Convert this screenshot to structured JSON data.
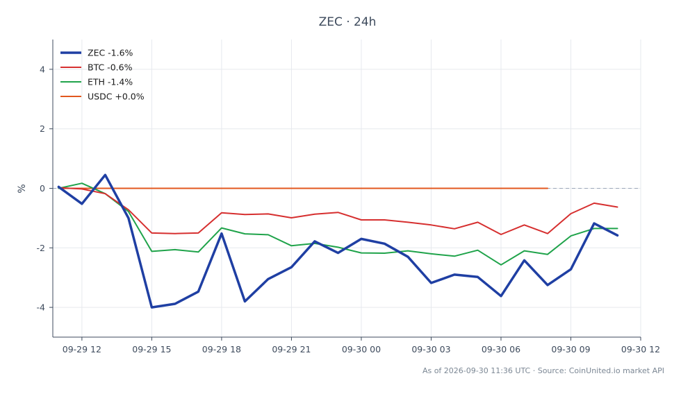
{
  "chart_data": {
    "type": "line",
    "title": "ZEC · 24h",
    "xlabel": "",
    "ylabel": "%",
    "xlim": [
      "2026-09-29 10:45",
      "2026-09-30 12:00"
    ],
    "ylim": [
      -5,
      5
    ],
    "x_ticks": [
      "09-29 12",
      "09-29 15",
      "09-29 18",
      "09-29 21",
      "09-30 00",
      "09-30 03",
      "09-30 06",
      "09-30 09",
      "09-30 12"
    ],
    "y_ticks": [
      4,
      2,
      0,
      -2,
      -4
    ],
    "grid": true,
    "legend_position": "top-left",
    "reference_line": {
      "y": 0,
      "style": "dashed"
    },
    "series": [
      {
        "name": "ZEC -1.6%",
        "color": "#1f3fa3",
        "values": [
          [
            "2026-09-29 11:00",
            0.05
          ],
          [
            "2026-09-29 12:00",
            -0.52
          ],
          [
            "2026-09-29 13:00",
            0.45
          ],
          [
            "2026-09-29 14:00",
            -1.0
          ],
          [
            "2026-09-29 15:00",
            -4.0
          ],
          [
            "2026-09-29 16:00",
            -3.88
          ],
          [
            "2026-09-29 17:00",
            -3.47
          ],
          [
            "2026-09-29 18:00",
            -1.52
          ],
          [
            "2026-09-29 19:00",
            -3.8
          ],
          [
            "2026-09-29 20:00",
            -3.05
          ],
          [
            "2026-09-29 21:00",
            -2.65
          ],
          [
            "2026-09-29 22:00",
            -1.78
          ],
          [
            "2026-09-29 23:00",
            -2.17
          ],
          [
            "2026-09-30 00:00",
            -1.7
          ],
          [
            "2026-09-30 01:00",
            -1.86
          ],
          [
            "2026-09-30 02:00",
            -2.3
          ],
          [
            "2026-09-30 03:00",
            -3.18
          ],
          [
            "2026-09-30 04:00",
            -2.9
          ],
          [
            "2026-09-30 05:00",
            -2.98
          ],
          [
            "2026-09-30 06:00",
            -3.62
          ],
          [
            "2026-09-30 07:00",
            -2.42
          ],
          [
            "2026-09-30 08:00",
            -3.25
          ],
          [
            "2026-09-30 09:00",
            -2.72
          ],
          [
            "2026-09-30 10:00",
            -1.18
          ],
          [
            "2026-09-30 11:00",
            -1.58
          ]
        ]
      },
      {
        "name": "BTC -0.6%",
        "color": "#d62f2f",
        "values": [
          [
            "2026-09-29 11:00",
            0.02
          ],
          [
            "2026-09-29 12:00",
            -0.02
          ],
          [
            "2026-09-29 13:00",
            -0.18
          ],
          [
            "2026-09-29 14:00",
            -0.72
          ],
          [
            "2026-09-29 15:00",
            -1.5
          ],
          [
            "2026-09-29 16:00",
            -1.52
          ],
          [
            "2026-09-29 17:00",
            -1.5
          ],
          [
            "2026-09-29 18:00",
            -0.82
          ],
          [
            "2026-09-29 19:00",
            -0.88
          ],
          [
            "2026-09-29 20:00",
            -0.86
          ],
          [
            "2026-09-29 21:00",
            -0.99
          ],
          [
            "2026-09-29 22:00",
            -0.87
          ],
          [
            "2026-09-29 23:00",
            -0.81
          ],
          [
            "2026-09-30 00:00",
            -1.06
          ],
          [
            "2026-09-30 01:00",
            -1.06
          ],
          [
            "2026-09-30 02:00",
            -1.14
          ],
          [
            "2026-09-30 03:00",
            -1.23
          ],
          [
            "2026-09-30 04:00",
            -1.36
          ],
          [
            "2026-09-30 05:00",
            -1.14
          ],
          [
            "2026-09-30 06:00",
            -1.55
          ],
          [
            "2026-09-30 07:00",
            -1.23
          ],
          [
            "2026-09-30 08:00",
            -1.52
          ],
          [
            "2026-09-30 09:00",
            -0.85
          ],
          [
            "2026-09-30 10:00",
            -0.5
          ],
          [
            "2026-09-30 11:00",
            -0.63
          ]
        ]
      },
      {
        "name": "ETH -1.4%",
        "color": "#1fa34a",
        "values": [
          [
            "2026-09-29 11:00",
            0.0
          ],
          [
            "2026-09-29 12:00",
            0.17
          ],
          [
            "2026-09-29 13:00",
            -0.18
          ],
          [
            "2026-09-29 14:00",
            -0.78
          ],
          [
            "2026-09-29 15:00",
            -2.12
          ],
          [
            "2026-09-29 16:00",
            -2.06
          ],
          [
            "2026-09-29 17:00",
            -2.14
          ],
          [
            "2026-09-29 18:00",
            -1.33
          ],
          [
            "2026-09-29 19:00",
            -1.53
          ],
          [
            "2026-09-29 20:00",
            -1.56
          ],
          [
            "2026-09-29 21:00",
            -1.93
          ],
          [
            "2026-09-29 22:00",
            -1.85
          ],
          [
            "2026-09-29 23:00",
            -1.98
          ],
          [
            "2026-09-30 00:00",
            -2.17
          ],
          [
            "2026-09-30 01:00",
            -2.18
          ],
          [
            "2026-09-30 02:00",
            -2.1
          ],
          [
            "2026-09-30 03:00",
            -2.2
          ],
          [
            "2026-09-30 04:00",
            -2.28
          ],
          [
            "2026-09-30 05:00",
            -2.08
          ],
          [
            "2026-09-30 06:00",
            -2.57
          ],
          [
            "2026-09-30 07:00",
            -2.1
          ],
          [
            "2026-09-30 08:00",
            -2.22
          ],
          [
            "2026-09-30 09:00",
            -1.6
          ],
          [
            "2026-09-30 10:00",
            -1.35
          ],
          [
            "2026-09-30 11:00",
            -1.35
          ]
        ]
      },
      {
        "name": "USDC +0.0%",
        "color": "#e2571e",
        "values": [
          [
            "2026-09-29 11:00",
            0.0
          ],
          [
            "2026-09-29 12:00",
            0.0
          ],
          [
            "2026-09-29 13:00",
            0.0
          ],
          [
            "2026-09-29 14:00",
            0.0
          ],
          [
            "2026-09-29 15:00",
            0.0
          ],
          [
            "2026-09-29 16:00",
            0.0
          ],
          [
            "2026-09-29 17:00",
            0.0
          ],
          [
            "2026-09-29 18:00",
            0.0
          ],
          [
            "2026-09-29 19:00",
            0.0
          ],
          [
            "2026-09-29 20:00",
            0.0
          ],
          [
            "2026-09-29 21:00",
            0.0
          ],
          [
            "2026-09-29 22:00",
            0.0
          ],
          [
            "2026-09-29 23:00",
            0.0
          ],
          [
            "2026-09-30 00:00",
            0.0
          ],
          [
            "2026-09-30 01:00",
            0.0
          ],
          [
            "2026-09-30 02:00",
            0.0
          ],
          [
            "2026-09-30 03:00",
            0.0
          ],
          [
            "2026-09-30 04:00",
            0.0
          ],
          [
            "2026-09-30 05:00",
            0.0
          ],
          [
            "2026-09-30 06:00",
            0.0
          ],
          [
            "2026-09-30 07:00",
            0.0
          ],
          [
            "2026-09-30 08:00",
            0.0
          ]
        ]
      }
    ],
    "footer": "As of 2026-09-30 11:36 UTC · Source: CoinUnited.io market API"
  }
}
